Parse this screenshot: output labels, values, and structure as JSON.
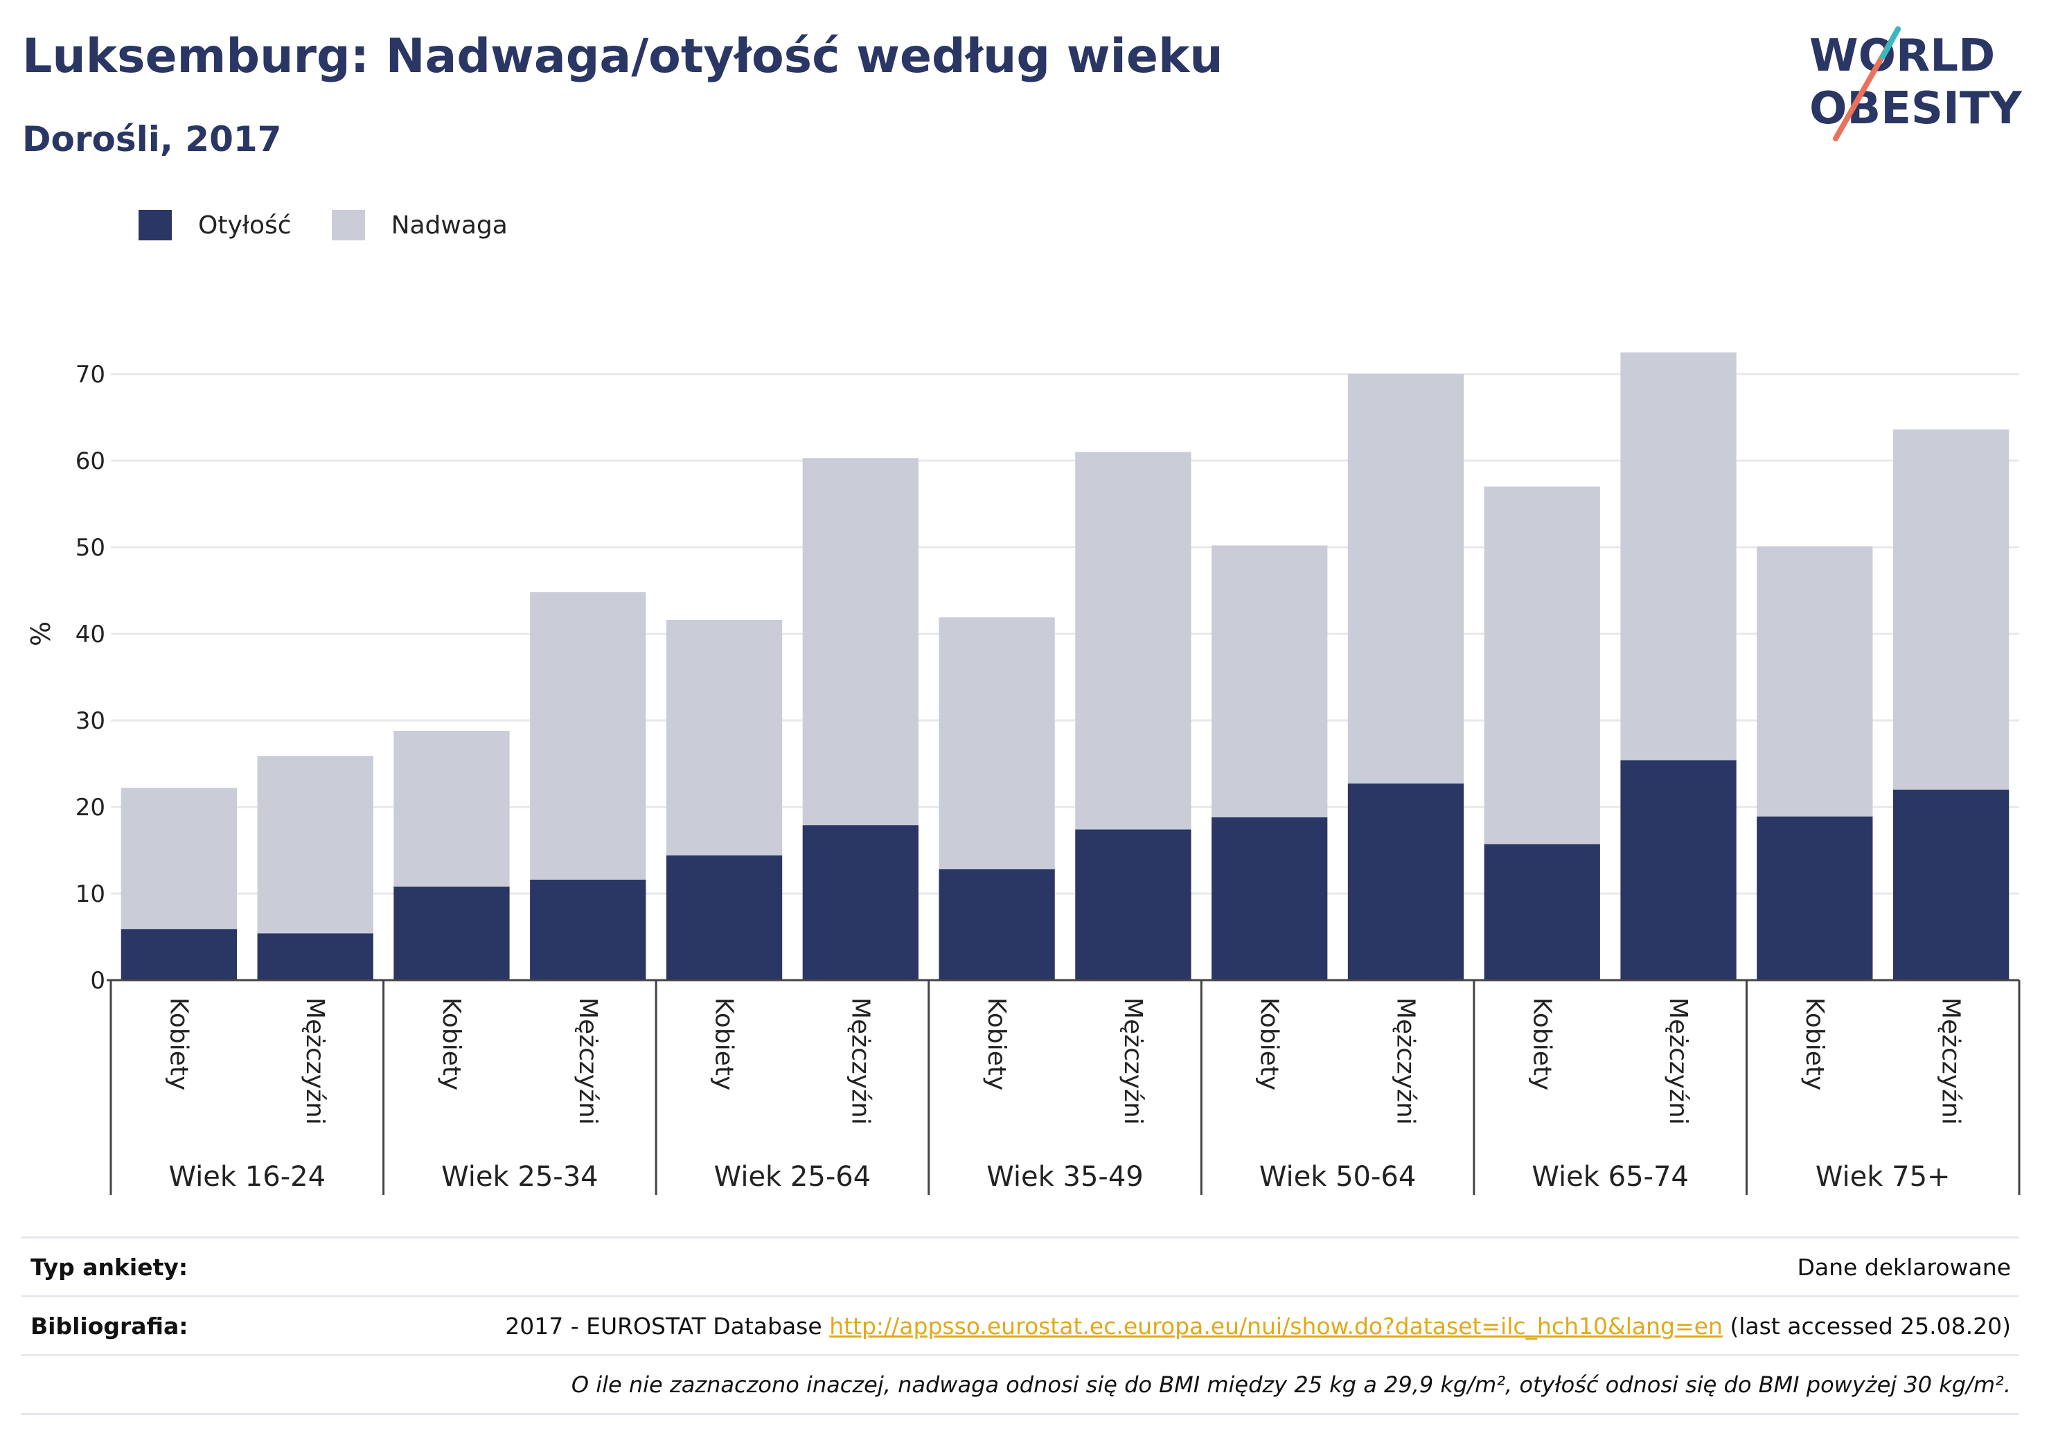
{
  "title": "Luksemburg: Nadwaga/otyłość według wieku",
  "subtitle": "Dorośli, 2017",
  "logo": {
    "line1": "WORLD",
    "line2": "OBESITY"
  },
  "legend": [
    {
      "label": "Otyłość",
      "color": "#2a3663"
    },
    {
      "label": "Nadwaga",
      "color": "#cacdd8"
    }
  ],
  "footer": {
    "survey_label": "Typ ankiety:",
    "survey_value": "Dane deklarowane",
    "biblio_label": "Bibliografia:",
    "biblio_prefix": "2017 - EUROSTAT Database",
    "biblio_link": "http://appsso.eurostat.ec.europa.eu/nui/show.do?dataset=ilc_hch10&lang=en",
    "biblio_suffix": "(last accessed 25.08.20)",
    "note": "O ile nie zaznaczono inaczej, nadwaga odnosi się do BMI między 25 kg a 29,9 kg/m², otyłość odnosi się do BMI powyżej 30 kg/m²."
  },
  "chart_data": {
    "type": "bar",
    "stacked": true,
    "ylabel": "%",
    "ylim": [
      0,
      70
    ],
    "yticks": [
      0,
      10,
      20,
      30,
      40,
      50,
      60,
      70
    ],
    "grid": true,
    "legend_position": "top-left",
    "groups": [
      "Wiek 16-24",
      "Wiek 25-34",
      "Wiek 25-64",
      "Wiek 35-49",
      "Wiek 50-64",
      "Wiek 65-74",
      "Wiek 75+"
    ],
    "sexes": [
      "Kobiety",
      "Mężczyźni"
    ],
    "categories": [
      "Wiek 16-24 / Kobiety",
      "Wiek 16-24 / Mężczyźni",
      "Wiek 25-34 / Kobiety",
      "Wiek 25-34 / Mężczyźni",
      "Wiek 25-64 / Kobiety",
      "Wiek 25-64 / Mężczyźni",
      "Wiek 35-49 / Kobiety",
      "Wiek 35-49 / Mężczyźni",
      "Wiek 50-64 / Kobiety",
      "Wiek 50-64 / Mężczyźni",
      "Wiek 65-74 / Kobiety",
      "Wiek 65-74 / Mężczyźni",
      "Wiek 75+ / Kobiety",
      "Wiek 75+ / Mężczyźni"
    ],
    "series": [
      {
        "name": "Otyłość",
        "values": [
          5.9,
          5.4,
          10.8,
          11.6,
          14.4,
          17.9,
          12.8,
          17.4,
          18.8,
          22.7,
          15.7,
          25.4,
          18.9,
          22.0
        ]
      },
      {
        "name": "Nadwaga",
        "values": [
          16.3,
          20.5,
          18.0,
          33.2,
          27.2,
          42.4,
          29.1,
          43.6,
          31.4,
          47.3,
          41.3,
          47.1,
          31.2,
          41.6
        ]
      }
    ]
  }
}
